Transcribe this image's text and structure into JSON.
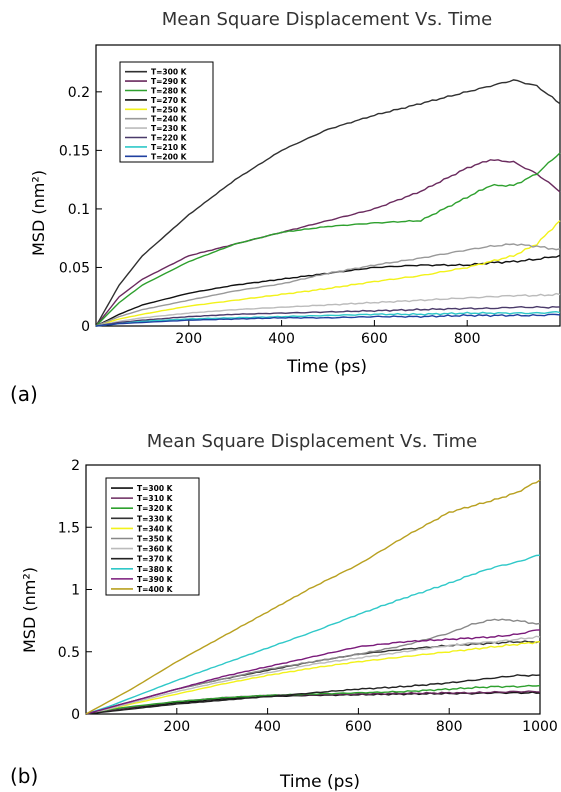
{
  "figure": {
    "panel_a_label": "(a)",
    "panel_b_label": "(b)"
  },
  "chart_data": [
    {
      "type": "line",
      "title": "Mean Square Displacement Vs. Time",
      "xlabel": "Time (ps)",
      "ylabel": "MSD (nm²)",
      "xlim": [
        0,
        1000
      ],
      "ylim": [
        0,
        0.24
      ],
      "xticks": [
        200,
        400,
        600,
        800
      ],
      "yticks": [
        0,
        0.05,
        0.1,
        0.15,
        0.2
      ],
      "ytick_labels": [
        "0",
        "0.05",
        "0.1",
        "0.15",
        "0.2"
      ],
      "grid": false,
      "legend_position": "top-left",
      "x": [
        0,
        50,
        100,
        200,
        300,
        400,
        500,
        600,
        700,
        800,
        850,
        900,
        950,
        1000
      ],
      "series": [
        {
          "name": "T=300 K",
          "color": "#303030",
          "values": [
            0,
            0.035,
            0.06,
            0.095,
            0.125,
            0.15,
            0.168,
            0.18,
            0.19,
            0.2,
            0.205,
            0.21,
            0.205,
            0.19
          ]
        },
        {
          "name": "T=290 K",
          "color": "#6a2a5e",
          "values": [
            0,
            0.025,
            0.04,
            0.06,
            0.07,
            0.08,
            0.09,
            0.1,
            0.115,
            0.135,
            0.142,
            0.14,
            0.13,
            0.115
          ]
        },
        {
          "name": "T=280 K",
          "color": "#2ea02e",
          "values": [
            0,
            0.02,
            0.035,
            0.055,
            0.07,
            0.08,
            0.085,
            0.088,
            0.09,
            0.11,
            0.12,
            0.12,
            0.13,
            0.148
          ]
        },
        {
          "name": "T=270 K",
          "color": "#111111",
          "values": [
            0,
            0.01,
            0.018,
            0.028,
            0.035,
            0.04,
            0.045,
            0.05,
            0.052,
            0.052,
            0.054,
            0.055,
            0.057,
            0.06
          ]
        },
        {
          "name": "T=250 K",
          "color": "#f2f21a",
          "values": [
            0,
            0.006,
            0.01,
            0.017,
            0.022,
            0.027,
            0.032,
            0.038,
            0.043,
            0.05,
            0.055,
            0.06,
            0.07,
            0.09
          ]
        },
        {
          "name": "T=240 K",
          "color": "#999999",
          "values": [
            0,
            0.008,
            0.014,
            0.022,
            0.03,
            0.036,
            0.045,
            0.052,
            0.058,
            0.065,
            0.068,
            0.07,
            0.068,
            0.065
          ]
        },
        {
          "name": "T=230 K",
          "color": "#bbbbbb",
          "values": [
            0,
            0.004,
            0.007,
            0.011,
            0.014,
            0.016,
            0.018,
            0.02,
            0.022,
            0.024,
            0.025,
            0.026,
            0.026,
            0.027
          ]
        },
        {
          "name": "T=220 K",
          "color": "#4a3a6a",
          "values": [
            0,
            0.003,
            0.005,
            0.008,
            0.01,
            0.011,
            0.012,
            0.013,
            0.014,
            0.015,
            0.015,
            0.016,
            0.016,
            0.016
          ]
        },
        {
          "name": "T=210 K",
          "color": "#2fc8c8",
          "values": [
            0,
            0.002,
            0.004,
            0.006,
            0.007,
            0.008,
            0.009,
            0.01,
            0.01,
            0.011,
            0.011,
            0.011,
            0.011,
            0.012
          ]
        },
        {
          "name": "T=200 K",
          "color": "#2040a0",
          "values": [
            0,
            0.002,
            0.003,
            0.005,
            0.006,
            0.007,
            0.007,
            0.008,
            0.008,
            0.009,
            0.009,
            0.009,
            0.009,
            0.01
          ]
        }
      ]
    },
    {
      "type": "line",
      "title": "Mean Square Displacement Vs. Time",
      "xlabel": "Time (ps)",
      "ylabel": "MSD (nm²)",
      "xlim": [
        0,
        1000
      ],
      "ylim": [
        0,
        2
      ],
      "xticks": [
        200,
        400,
        600,
        800,
        1000
      ],
      "yticks": [
        0,
        0.5,
        1,
        1.5,
        2
      ],
      "ytick_labels": [
        "0",
        "0.5",
        "1",
        "1.5",
        "2"
      ],
      "grid": false,
      "legend_position": "top-left",
      "x": [
        0,
        50,
        100,
        200,
        300,
        400,
        500,
        600,
        700,
        800,
        850,
        900,
        950,
        1000
      ],
      "series": [
        {
          "name": "T=300 K",
          "color": "#111111",
          "values": [
            0,
            0.03,
            0.05,
            0.09,
            0.12,
            0.14,
            0.15,
            0.155,
            0.16,
            0.165,
            0.165,
            0.17,
            0.17,
            0.17
          ]
        },
        {
          "name": "T=310 K",
          "color": "#6a2a5e",
          "values": [
            0,
            0.03,
            0.055,
            0.1,
            0.13,
            0.15,
            0.155,
            0.16,
            0.165,
            0.17,
            0.17,
            0.175,
            0.18,
            0.18
          ]
        },
        {
          "name": "T=320 K",
          "color": "#2ea02e",
          "values": [
            0,
            0.035,
            0.06,
            0.1,
            0.13,
            0.15,
            0.16,
            0.17,
            0.18,
            0.2,
            0.21,
            0.22,
            0.22,
            0.23
          ]
        },
        {
          "name": "T=330 K",
          "color": "#333333",
          "values": [
            0,
            0.05,
            0.1,
            0.2,
            0.28,
            0.35,
            0.42,
            0.48,
            0.52,
            0.55,
            0.56,
            0.57,
            0.58,
            0.58
          ]
        },
        {
          "name": "T=340 K",
          "color": "#f2f21a",
          "values": [
            0,
            0.04,
            0.08,
            0.16,
            0.24,
            0.31,
            0.37,
            0.42,
            0.46,
            0.5,
            0.52,
            0.54,
            0.56,
            0.58
          ]
        },
        {
          "name": "T=350 K",
          "color": "#888888",
          "values": [
            0,
            0.05,
            0.1,
            0.2,
            0.28,
            0.36,
            0.42,
            0.48,
            0.55,
            0.65,
            0.72,
            0.76,
            0.75,
            0.72
          ]
        },
        {
          "name": "T=360 K",
          "color": "#bbbbbb",
          "values": [
            0,
            0.04,
            0.09,
            0.18,
            0.26,
            0.33,
            0.4,
            0.45,
            0.5,
            0.55,
            0.57,
            0.58,
            0.6,
            0.62
          ]
        },
        {
          "name": "T=370 K",
          "color": "#222222",
          "values": [
            0,
            0.02,
            0.04,
            0.08,
            0.11,
            0.14,
            0.17,
            0.2,
            0.22,
            0.25,
            0.27,
            0.29,
            0.31,
            0.31
          ]
        },
        {
          "name": "T=380 K",
          "color": "#2fc8c8",
          "values": [
            0,
            0.06,
            0.13,
            0.27,
            0.4,
            0.53,
            0.66,
            0.8,
            0.93,
            1.05,
            1.12,
            1.18,
            1.22,
            1.28
          ]
        },
        {
          "name": "T=390 K",
          "color": "#7a1a7a",
          "values": [
            0,
            0.05,
            0.1,
            0.2,
            0.3,
            0.38,
            0.46,
            0.54,
            0.58,
            0.6,
            0.61,
            0.62,
            0.64,
            0.68
          ]
        },
        {
          "name": "T=400 K",
          "color": "#b8a020",
          "values": [
            0,
            0.1,
            0.2,
            0.42,
            0.62,
            0.82,
            1.02,
            1.2,
            1.42,
            1.62,
            1.67,
            1.72,
            1.78,
            1.88
          ]
        }
      ]
    }
  ]
}
